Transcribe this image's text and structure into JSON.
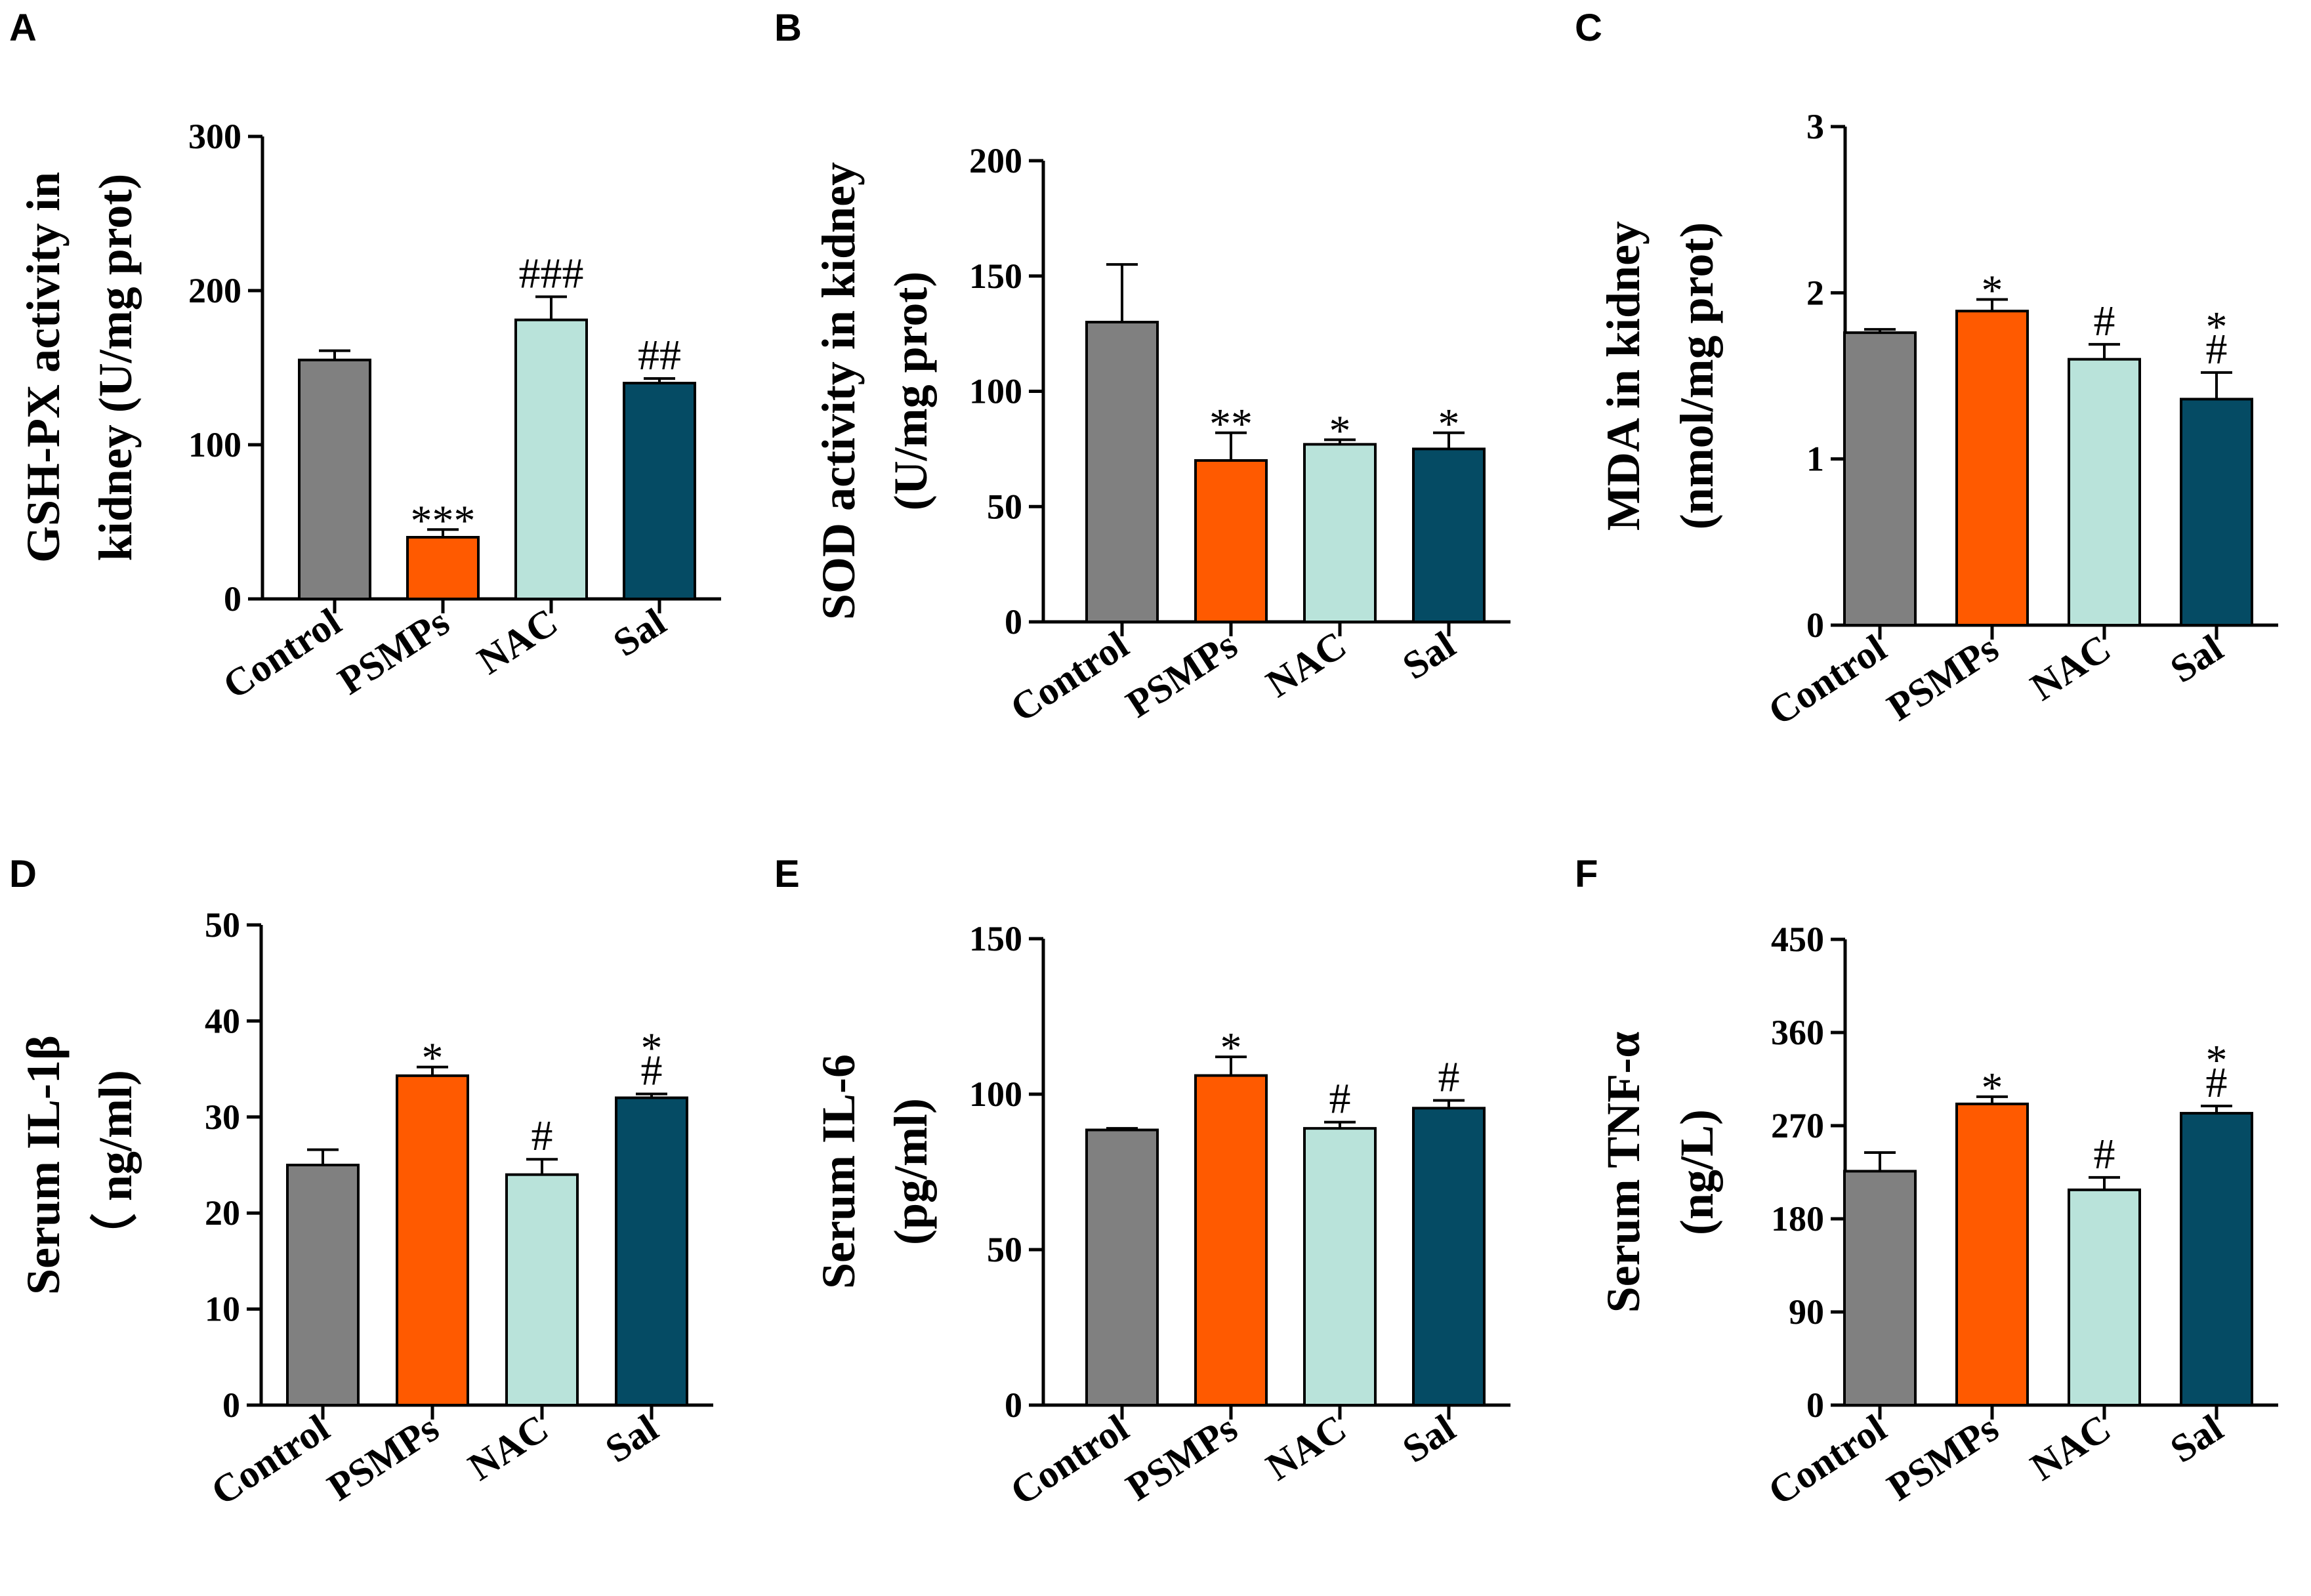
{
  "colors": {
    "Control": "#808080",
    "PSMPs": "#ff5a00",
    "NAC": "#b9e3da",
    "Sal": "#054b64"
  },
  "chart_data": [
    {
      "panel": "A",
      "type": "bar",
      "ylabel_lines": [
        "GSH-PX activity in",
        "kidney (U/mg prot)"
      ],
      "categories": [
        "Control",
        "PSMPs",
        "NAC",
        "Sal"
      ],
      "values": [
        155,
        40,
        181,
        140
      ],
      "errors": [
        6,
        5,
        15,
        3
      ],
      "annotations": [
        [],
        [
          "***"
        ],
        [
          "###"
        ],
        [
          "##"
        ]
      ],
      "ylim": [
        0,
        300
      ],
      "yticks": [
        0,
        100,
        200,
        300
      ]
    },
    {
      "panel": "B",
      "type": "bar",
      "ylabel_lines": [
        "SOD activity in kidney",
        "(U/mg prot)"
      ],
      "categories": [
        "Control",
        "PSMPs",
        "NAC",
        "Sal"
      ],
      "values": [
        130,
        70,
        77,
        75
      ],
      "errors": [
        25,
        12,
        2,
        7
      ],
      "annotations": [
        [],
        [
          "**"
        ],
        [
          "*"
        ],
        [
          "*"
        ]
      ],
      "ylim": [
        0,
        200
      ],
      "yticks": [
        0,
        50,
        100,
        150,
        200
      ]
    },
    {
      "panel": "C",
      "type": "bar",
      "ylabel_lines": [
        "MDA in kidney",
        "(nmol/mg prot)"
      ],
      "categories": [
        "Control",
        "PSMPs",
        "NAC",
        "Sal"
      ],
      "values": [
        1.76,
        1.89,
        1.6,
        1.36
      ],
      "errors": [
        0.02,
        0.07,
        0.09,
        0.16
      ],
      "annotations": [
        [],
        [
          "*"
        ],
        [
          "#"
        ],
        [
          "#",
          "*"
        ]
      ],
      "ylim": [
        0,
        3
      ],
      "yticks": [
        0,
        1,
        2,
        3
      ]
    },
    {
      "panel": "D",
      "type": "bar",
      "ylabel_lines": [
        "Serum IL-1β",
        "（ ng/ml)"
      ],
      "categories": [
        "Control",
        "PSMPs",
        "NAC",
        "Sal"
      ],
      "values": [
        25,
        34.3,
        24,
        32
      ],
      "errors": [
        1.6,
        0.9,
        1.6,
        0.4
      ],
      "annotations": [
        [],
        [
          "*"
        ],
        [
          "#"
        ],
        [
          "#",
          "*"
        ]
      ],
      "ylim": [
        0,
        50
      ],
      "yticks": [
        0,
        10,
        20,
        30,
        40,
        50
      ]
    },
    {
      "panel": "E",
      "type": "bar",
      "ylabel_lines": [
        "Serum IL-6",
        "(pg/ml)"
      ],
      "categories": [
        "Control",
        "PSMPs",
        "NAC",
        "Sal"
      ],
      "values": [
        88.5,
        106,
        89,
        95.5
      ],
      "errors": [
        0.5,
        6,
        2,
        2.5
      ],
      "annotations": [
        [],
        [
          "*"
        ],
        [
          "#"
        ],
        [
          "#"
        ]
      ],
      "ylim": [
        0,
        150
      ],
      "yticks": [
        0,
        50,
        100,
        150
      ]
    },
    {
      "panel": "F",
      "type": "bar",
      "ylabel_lines": [
        "Serum TNF-α",
        "(ng/L)"
      ],
      "categories": [
        "Control",
        "PSMPs",
        "NAC",
        "Sal"
      ],
      "values": [
        226,
        291,
        208,
        282
      ],
      "errors": [
        18,
        7,
        12,
        7
      ],
      "annotations": [
        [],
        [
          "*"
        ],
        [
          "#"
        ],
        [
          "#",
          "*"
        ]
      ],
      "ylim": [
        0,
        450
      ],
      "yticks": [
        0,
        90,
        180,
        270,
        360,
        450
      ]
    }
  ]
}
